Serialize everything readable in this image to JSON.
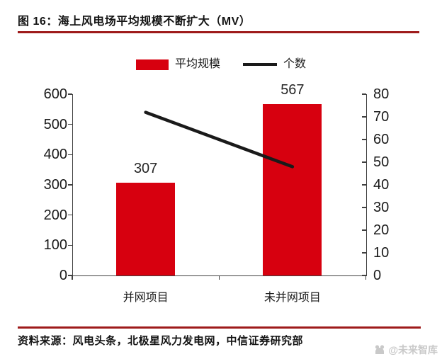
{
  "header": {
    "title": "图 16：海上风电场平均规模不断扩大（MV）"
  },
  "legend": {
    "bar_label": "平均规模",
    "line_label": "个数"
  },
  "colors": {
    "bar": "#d7000f",
    "line": "#1a1a1a",
    "accent": "#9e1b1b",
    "axis": "#404040",
    "watermark": "#c9c9c9"
  },
  "chart_data": {
    "type": "bar",
    "title": "海上风电场平均规模不断扩大（MV）",
    "categories": [
      "并网项目",
      "未并网项目"
    ],
    "series": [
      {
        "name": "平均规模",
        "type": "bar",
        "axis": "left",
        "values": [
          307,
          567
        ]
      },
      {
        "name": "个数",
        "type": "line",
        "axis": "right",
        "values": [
          72,
          48
        ]
      }
    ],
    "left_axis": {
      "min": 0,
      "max": 600,
      "step": 100
    },
    "right_axis": {
      "min": 0,
      "max": 80,
      "step": 10
    },
    "bar_value_labels": [
      "307",
      "567"
    ],
    "legend_position": "top",
    "grid": false
  },
  "footer": {
    "source": "资料来源：风电头条，北极星风力发电网，中信证券研究部",
    "watermark": "@未来智库"
  }
}
